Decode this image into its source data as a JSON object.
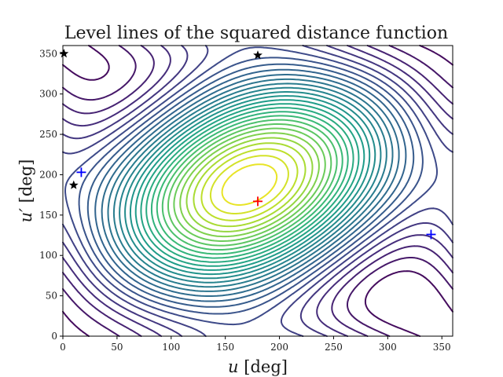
{
  "chart_data": {
    "type": "contour",
    "title": "Level lines of the squared distance function",
    "xlabel_symbol": "u",
    "xlabel_unit": " [deg]",
    "ylabel_symbol": "u′",
    "ylabel_unit": " [deg]",
    "xlim": [
      0,
      360
    ],
    "ylim": [
      0,
      360
    ],
    "xticks": [
      0,
      50,
      100,
      150,
      200,
      250,
      300,
      350
    ],
    "yticks": [
      0,
      50,
      100,
      150,
      200,
      250,
      300,
      350
    ],
    "grid": false,
    "colormap": "viridis",
    "minima_marker_color": "#0000ff",
    "maximum_marker_color": "#ff0000",
    "saddle_marker_color": "#000000",
    "markers": [
      {
        "kind": "plus",
        "color": "#0000ff",
        "x": 17,
        "y": 203
      },
      {
        "kind": "plus",
        "color": "#0000ff",
        "x": 340,
        "y": 126
      },
      {
        "kind": "plus",
        "color": "#ff0000",
        "x": 180,
        "y": 167
      },
      {
        "kind": "star",
        "color": "#000000",
        "x": 1,
        "y": 350
      },
      {
        "kind": "star",
        "color": "#000000",
        "x": 180,
        "y": 348
      },
      {
        "kind": "star",
        "color": "#000000",
        "x": 10,
        "y": 187
      }
    ]
  }
}
